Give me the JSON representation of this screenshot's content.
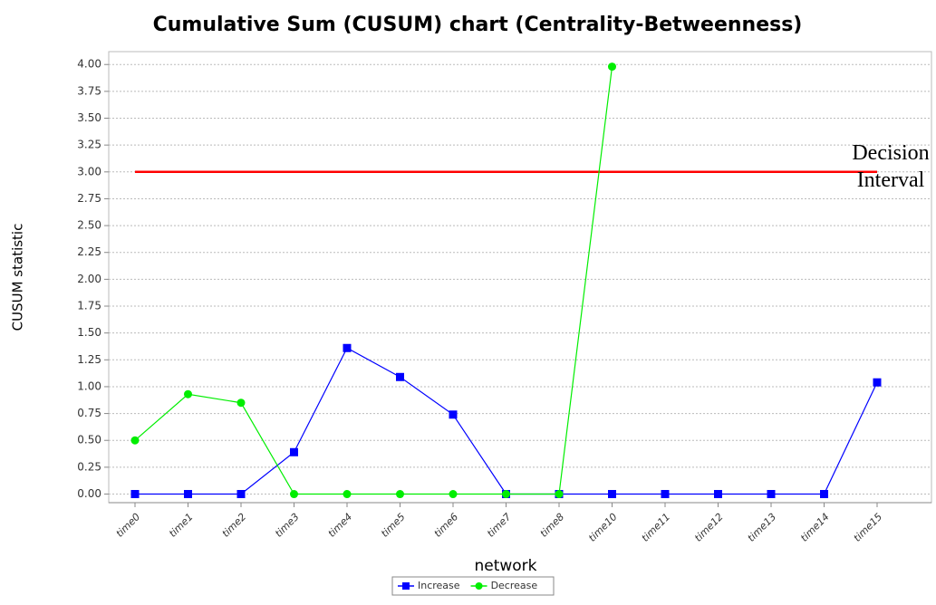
{
  "chart_data": {
    "type": "line",
    "title": "Cumulative Sum (CUSUM) chart (Centrality-Betweenness)",
    "x_label": "network",
    "y_label": "CUSUM statistic",
    "categories": [
      "time0",
      "time1",
      "time2",
      "time3",
      "time4",
      "time5",
      "time6",
      "time7",
      "time8",
      "time10",
      "time11",
      "time12",
      "time13",
      "time14",
      "time15"
    ],
    "series": [
      {
        "name": "Increase",
        "color": "#0000ff",
        "marker": "square",
        "values": [
          0,
          0,
          0,
          0.39,
          1.36,
          1.09,
          0.74,
          0,
          0,
          0,
          0,
          0,
          0,
          0,
          1.04
        ]
      },
      {
        "name": "Decrease",
        "color": "#00ee00",
        "marker": "circle",
        "values": [
          0.5,
          0.93,
          0.85,
          0,
          0,
          0,
          0,
          0,
          0,
          3.98,
          null,
          null,
          null,
          null,
          null
        ]
      }
    ],
    "threshold": {
      "value": 3,
      "label": "Decision Interval",
      "color": "#ff0000"
    },
    "ylim": [
      -0.08,
      4.12
    ],
    "yticks": [
      {
        "value": 0,
        "label": "0.00"
      },
      {
        "value": 0.25,
        "label": "0.25"
      },
      {
        "value": 0.5,
        "label": "0.50"
      },
      {
        "value": 0.75,
        "label": "0.75"
      },
      {
        "value": 1,
        "label": "1.00"
      },
      {
        "value": 1.25,
        "label": "1.25"
      },
      {
        "value": 1.5,
        "label": "1.50"
      },
      {
        "value": 1.75,
        "label": "1.75"
      },
      {
        "value": 2,
        "label": "2.00"
      },
      {
        "value": 2.25,
        "label": "2.25"
      },
      {
        "value": 2.5,
        "label": "2.50"
      },
      {
        "value": 2.75,
        "label": "2.75"
      },
      {
        "value": 3,
        "label": "3.00"
      },
      {
        "value": 3.25,
        "label": "3.25"
      },
      {
        "value": 3.5,
        "label": "3.50"
      },
      {
        "value": 3.75,
        "label": "3.75"
      },
      {
        "value": 4,
        "label": "4.00"
      }
    ],
    "grid": true,
    "legend": "bottom"
  }
}
